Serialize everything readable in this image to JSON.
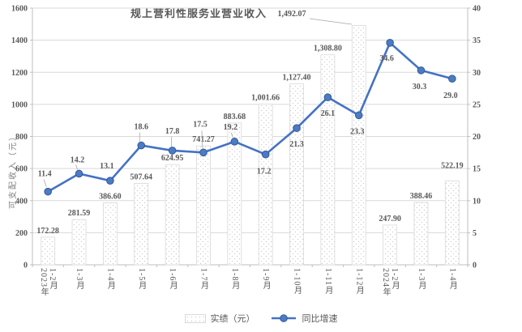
{
  "chart_data": {
    "type": "combo_bar_line",
    "title": "规上营利性服务业营业收入",
    "categories": [
      "2023年1-2月",
      "1-3月",
      "1-4月",
      "1-5月",
      "1-6月",
      "1-7月",
      "1-8月",
      "1-9月",
      "1-10月",
      "1-11月",
      "1-12月",
      "2024年1-2月",
      "1-3月",
      "1-4月"
    ],
    "series": [
      {
        "name": "实绩（元）",
        "type": "bar",
        "axis": "left",
        "values": [
          172.28,
          281.59,
          386.6,
          507.64,
          624.95,
          741.27,
          883.68,
          1001.66,
          1127.4,
          1308.8,
          1492.07,
          247.9,
          388.46,
          522.19
        ],
        "labels": [
          "172.28",
          "281.59",
          "386.60",
          "507.64",
          "624.95",
          "741.27",
          "883.68",
          "1,001.66",
          "1,127.40",
          "1,308.80",
          "1,492.07",
          "247.90",
          "388.46",
          "522.19"
        ]
      },
      {
        "name": "同比增速",
        "type": "line",
        "axis": "right",
        "values": [
          11.4,
          14.2,
          13.1,
          18.6,
          17.8,
          17.5,
          19.2,
          17.2,
          21.3,
          26.1,
          23.3,
          34.6,
          30.3,
          29.0
        ],
        "labels": [
          "11.4",
          "14.2",
          "13.1",
          "18.6",
          "17.8",
          "17.5",
          "19.2",
          "17.2",
          "21.3",
          "26.1",
          "23.3",
          "34.6",
          "30.3",
          "29.0"
        ]
      }
    ],
    "left_axis": {
      "title": "可支配收入（元）",
      "min": 0,
      "max": 1600,
      "step": 200
    },
    "right_axis": {
      "min": 0,
      "max": 40,
      "step": 5
    },
    "legend": [
      "实绩（元）",
      "同比增速"
    ],
    "legend_position": "bottom",
    "grid": true,
    "colors": {
      "line": "#4472c4",
      "marker_fill": "#4a7cc2",
      "marker_stroke": "#35589c",
      "bar_fill": "#ffffff",
      "bar_dots": "#c9c9c9",
      "bar_border": "#d9d9d9",
      "grid": "#d9d9d9",
      "axis": "#bfbfbf",
      "leader": "#a6a6a6",
      "text": "#595959",
      "axis_title": "#7f7f7f"
    }
  }
}
